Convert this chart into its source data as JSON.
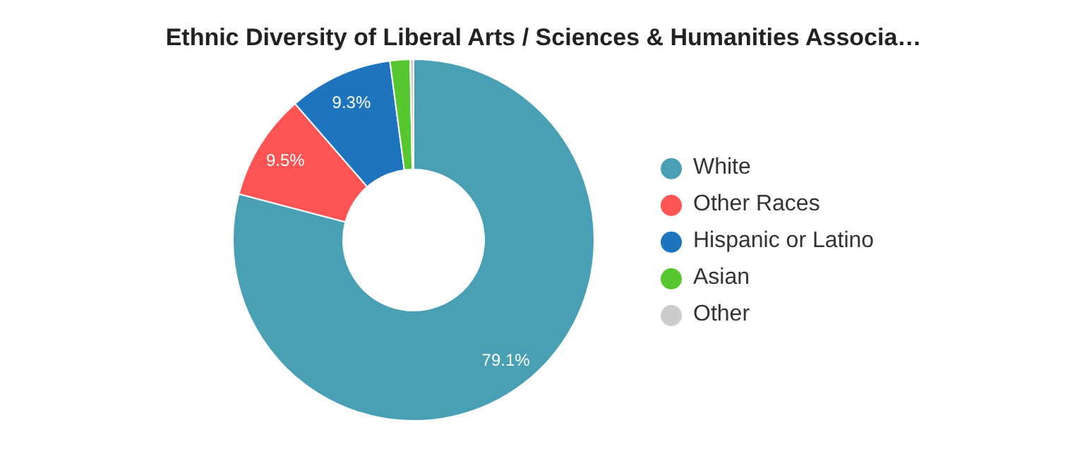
{
  "chart_data": {
    "type": "donut",
    "title": "Ethnic Diversity of Liberal Arts / Sciences & Humanities Associa…",
    "categories": [
      "White",
      "Other Races",
      "Hispanic or Latino",
      "Asian",
      "Other"
    ],
    "values": [
      79.1,
      9.5,
      9.3,
      1.8,
      0.3
    ],
    "colors": [
      "#49a0b5",
      "#fe5454",
      "#1f74be",
      "#56c72e",
      "#cccccc"
    ],
    "value_labels": [
      "79.1%",
      "9.5%",
      "9.3%",
      null,
      null
    ],
    "legend": "right"
  }
}
